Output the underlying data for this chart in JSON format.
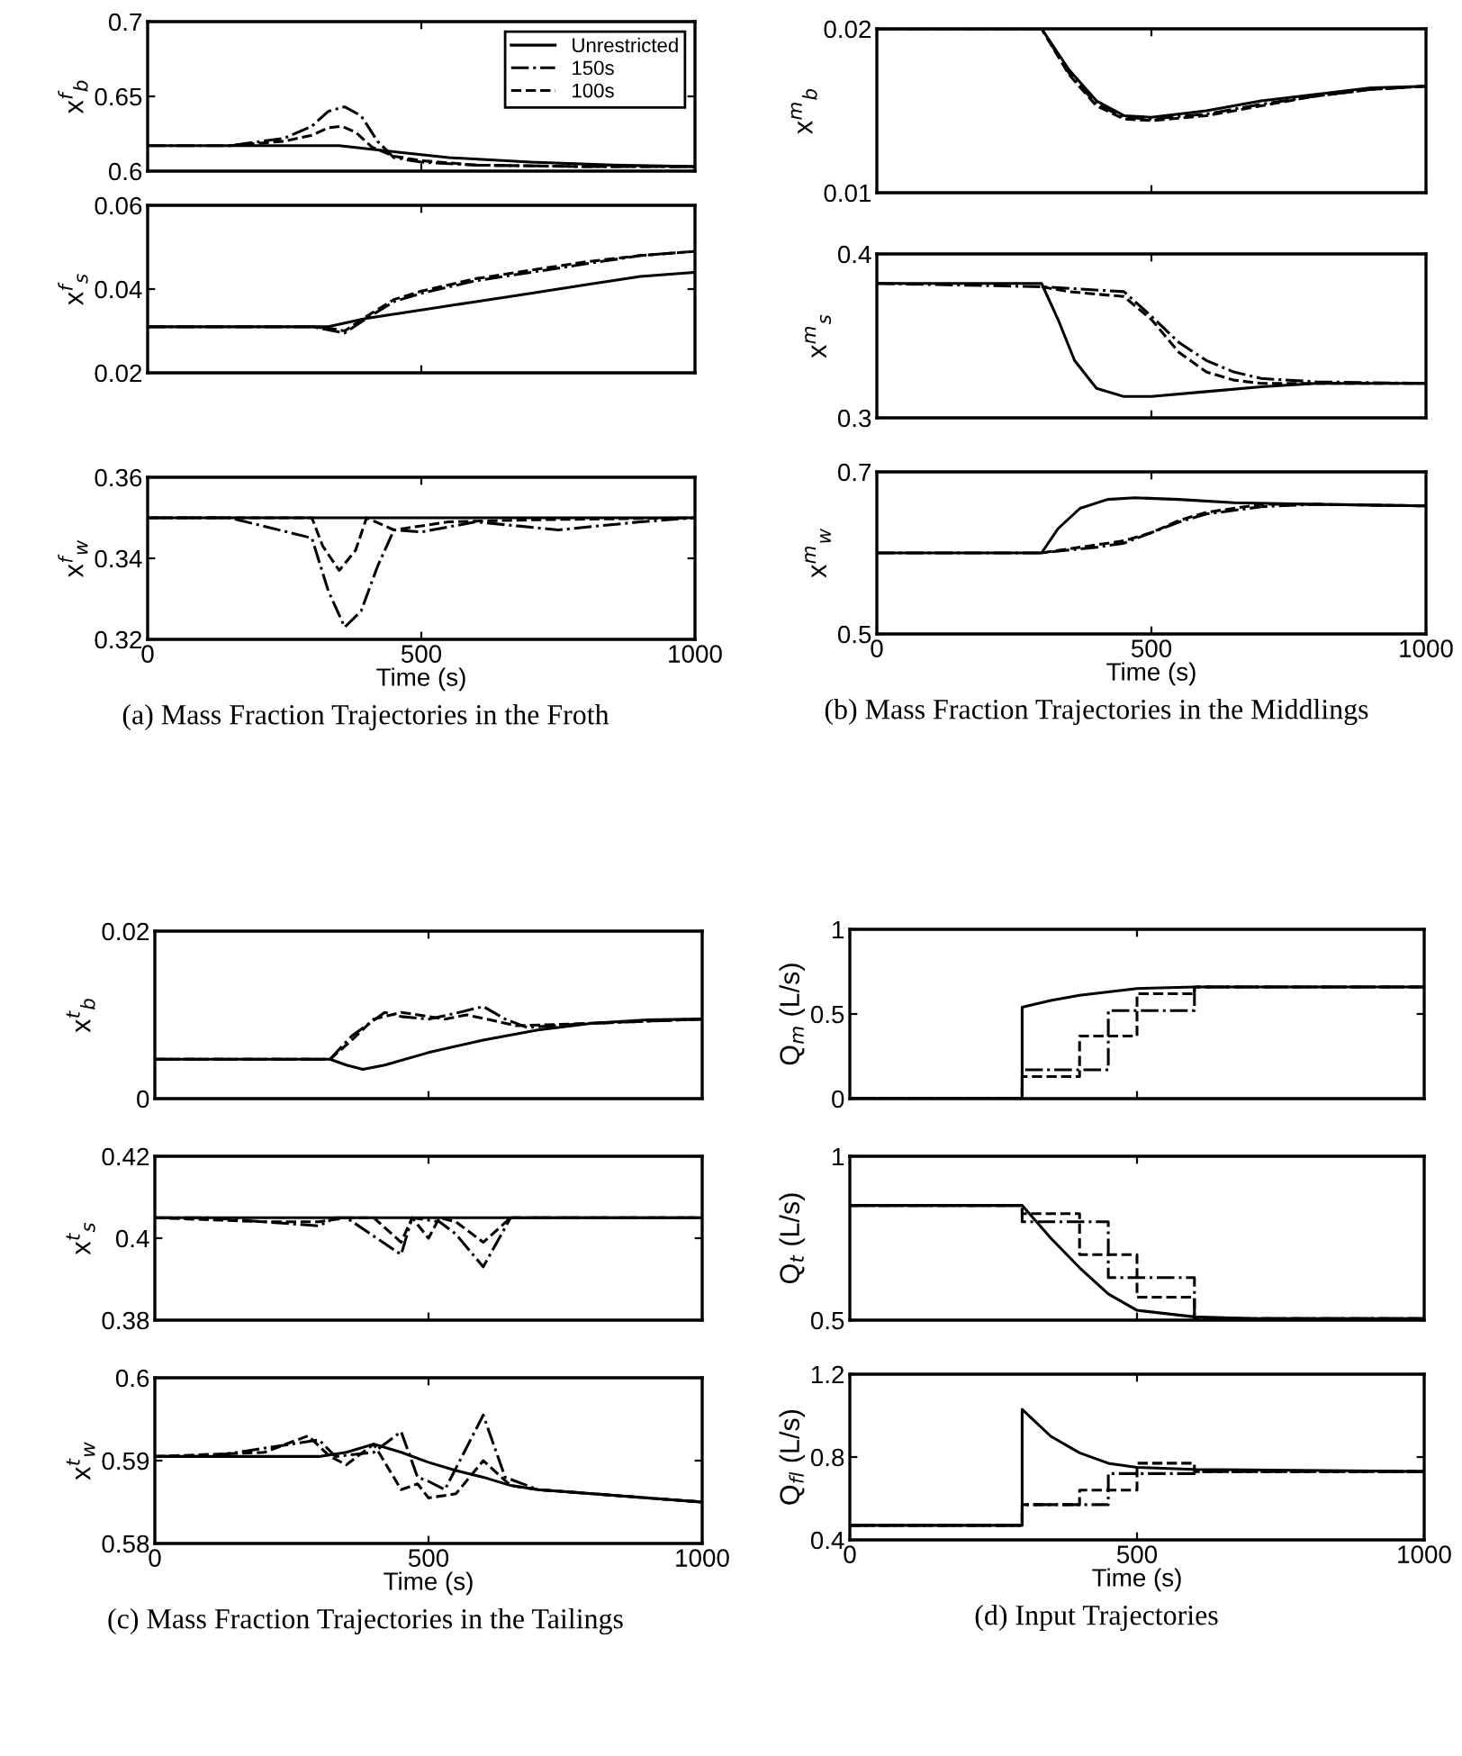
{
  "chart_data": [
    {
      "type": "line",
      "ylabel": "x$^{f}$$_{b}$",
      "xlim": [
        0,
        1000
      ],
      "xticks": [
        0,
        500,
        1000
      ],
      "ylim": [
        0.6,
        0.7
      ],
      "yticks": [
        0.6,
        0.65,
        0.7
      ],
      "tick_labels": "y",
      "legend": "top right",
      "series": [
        {
          "name": "Unrestricted",
          "color": "#000000",
          "line_style": "solid",
          "x": [
            0,
            350,
            450,
            550,
            700,
            850,
            1000
          ],
          "values": [
            0.617,
            0.617,
            0.613,
            0.609,
            0.606,
            0.604,
            0.603
          ]
        },
        {
          "name": "150s",
          "color": "#000000",
          "line_style": "dashdot",
          "x": [
            0,
            150,
            250,
            300,
            330,
            360,
            390,
            420,
            450,
            500,
            600,
            800,
            1000
          ],
          "values": [
            0.617,
            0.617,
            0.622,
            0.63,
            0.64,
            0.643,
            0.637,
            0.62,
            0.609,
            0.606,
            0.604,
            0.603,
            0.603
          ]
        },
        {
          "name": "100s",
          "color": "#000000",
          "line_style": "dashed",
          "x": [
            150,
            250,
            300,
            330,
            355,
            380,
            410,
            450,
            500,
            600,
            800,
            1000
          ],
          "values": [
            0.617,
            0.62,
            0.624,
            0.629,
            0.63,
            0.626,
            0.616,
            0.61,
            0.607,
            0.604,
            0.603,
            0.603
          ]
        }
      ]
    },
    {
      "type": "line",
      "ylabel": "x$^{f}$$_{s}$",
      "xlim": [
        0,
        1000
      ],
      "xticks": [
        0,
        500,
        1000
      ],
      "ylim": [
        0.02,
        0.06
      ],
      "yticks": [
        0.02,
        0.04,
        0.06
      ],
      "tick_labels": "y",
      "series": [
        {
          "color": "#000000",
          "line_style": "solid",
          "x": [
            0,
            330,
            400,
            500,
            600,
            700,
            800,
            900,
            1000
          ],
          "values": [
            0.031,
            0.031,
            0.033,
            0.035,
            0.037,
            0.039,
            0.041,
            0.043,
            0.044
          ]
        },
        {
          "color": "#000000",
          "line_style": "dashdot",
          "x": [
            0,
            300,
            340,
            360,
            400,
            450,
            500,
            600,
            700,
            800,
            900,
            1000
          ],
          "values": [
            0.031,
            0.031,
            0.03,
            0.0295,
            0.033,
            0.037,
            0.039,
            0.042,
            0.044,
            0.046,
            0.048,
            0.049
          ]
        },
        {
          "color": "#000000",
          "line_style": "dashed",
          "x": [
            300,
            340,
            360,
            400,
            450,
            500,
            600,
            700,
            800,
            900,
            1000
          ],
          "values": [
            0.031,
            0.0305,
            0.03,
            0.0335,
            0.0375,
            0.0395,
            0.0425,
            0.0445,
            0.0465,
            0.048,
            0.049
          ]
        }
      ]
    },
    {
      "type": "line",
      "ylabel": "x$^{f}$$_{w}$",
      "xlabel": "Time (s)",
      "xlim": [
        0,
        1000
      ],
      "xticks": [
        0,
        500,
        1000
      ],
      "ylim": [
        0.32,
        0.36
      ],
      "yticks": [
        0.32,
        0.34,
        0.36
      ],
      "annotations": [
        "(a) Mass Fraction Trajectories in the Froth"
      ],
      "series": [
        {
          "color": "#000000",
          "line_style": "solid",
          "x": [
            0,
            1000
          ],
          "values": [
            0.35,
            0.35
          ]
        },
        {
          "color": "#000000",
          "line_style": "dashdot",
          "x": [
            0,
            150,
            300,
            330,
            360,
            390,
            420,
            450,
            500,
            600,
            750,
            900,
            1000
          ],
          "values": [
            0.35,
            0.35,
            0.345,
            0.332,
            0.323,
            0.327,
            0.338,
            0.347,
            0.3465,
            0.349,
            0.347,
            0.349,
            0.35
          ]
        },
        {
          "color": "#000000",
          "line_style": "dashed",
          "x": [
            0,
            300,
            320,
            350,
            380,
            400,
            450,
            550,
            700,
            1000
          ],
          "values": [
            0.35,
            0.35,
            0.343,
            0.337,
            0.342,
            0.35,
            0.347,
            0.349,
            0.3495,
            0.35
          ]
        }
      ]
    },
    {
      "type": "line",
      "ylabel": "x$^{m}$$_{b}$",
      "xlim": [
        0,
        1000
      ],
      "xticks": [
        0,
        500,
        1000
      ],
      "ylim": [
        0.01,
        0.02
      ],
      "yticks": [
        0.01,
        0.02
      ],
      "tick_labels": "y",
      "series": [
        {
          "color": "#000000",
          "line_style": "solid",
          "x": [
            0,
            300,
            350,
            400,
            450,
            500,
            600,
            700,
            800,
            900,
            1000
          ],
          "values": [
            0.02,
            0.02,
            0.0175,
            0.0156,
            0.0147,
            0.0146,
            0.015,
            0.0156,
            0.016,
            0.0164,
            0.0165
          ]
        },
        {
          "color": "#000000",
          "line_style": "dashdot",
          "x": [
            0,
            300,
            350,
            400,
            450,
            500,
            600,
            700,
            800,
            900,
            1000
          ],
          "values": [
            0.02,
            0.02,
            0.0173,
            0.0154,
            0.0146,
            0.0145,
            0.0148,
            0.0154,
            0.0159,
            0.0163,
            0.0165
          ]
        },
        {
          "color": "#000000",
          "line_style": "dashed",
          "x": [
            0,
            300,
            350,
            400,
            450,
            500,
            600,
            700,
            800,
            900,
            1000
          ],
          "values": [
            0.02,
            0.02,
            0.0172,
            0.0153,
            0.0145,
            0.0144,
            0.0147,
            0.0153,
            0.0159,
            0.0163,
            0.0165
          ]
        }
      ]
    },
    {
      "type": "line",
      "ylabel": "x$^{m}$$_{s}$",
      "xlim": [
        0,
        1000
      ],
      "xticks": [
        0,
        500,
        1000
      ],
      "ylim": [
        0.3,
        0.4
      ],
      "yticks": [
        0.3,
        0.4
      ],
      "tick_labels": "y",
      "series": [
        {
          "color": "#000000",
          "line_style": "solid",
          "x": [
            0,
            300,
            330,
            360,
            400,
            450,
            500,
            600,
            700,
            800,
            1000
          ],
          "values": [
            0.382,
            0.382,
            0.36,
            0.335,
            0.318,
            0.313,
            0.313,
            0.316,
            0.319,
            0.321,
            0.321
          ]
        },
        {
          "color": "#000000",
          "line_style": "dashdot",
          "x": [
            0,
            300,
            450,
            500,
            550,
            600,
            650,
            700,
            800,
            1000
          ],
          "values": [
            0.382,
            0.38,
            0.377,
            0.362,
            0.346,
            0.335,
            0.328,
            0.324,
            0.322,
            0.321
          ]
        },
        {
          "color": "#000000",
          "line_style": "dashed",
          "x": [
            300,
            350,
            450,
            500,
            550,
            600,
            650,
            700,
            800,
            1000
          ],
          "values": [
            0.38,
            0.377,
            0.374,
            0.36,
            0.34,
            0.328,
            0.323,
            0.321,
            0.321,
            0.321
          ]
        }
      ]
    },
    {
      "type": "line",
      "ylabel": "x$^{m}$$_{w}$",
      "xlabel": "Time (s)",
      "xlim": [
        0,
        1000
      ],
      "xticks": [
        0,
        500,
        1000
      ],
      "ylim": [
        0.5,
        0.7
      ],
      "yticks": [
        0.5,
        0.7
      ],
      "annotations": [
        "(b) Mass Fraction Trajectories in the Middlings"
      ],
      "series": [
        {
          "color": "#000000",
          "line_style": "solid",
          "x": [
            0,
            300,
            330,
            370,
            420,
            470,
            550,
            650,
            800,
            1000
          ],
          "values": [
            0.6,
            0.6,
            0.63,
            0.655,
            0.666,
            0.668,
            0.666,
            0.662,
            0.66,
            0.658
          ]
        },
        {
          "color": "#000000",
          "line_style": "dashdot",
          "x": [
            0,
            300,
            400,
            450,
            500,
            550,
            600,
            700,
            800,
            1000
          ],
          "values": [
            0.6,
            0.6,
            0.607,
            0.612,
            0.625,
            0.638,
            0.648,
            0.657,
            0.66,
            0.658
          ]
        },
        {
          "color": "#000000",
          "line_style": "dashed",
          "x": [
            300,
            400,
            450,
            500,
            550,
            600,
            700,
            800,
            1000
          ],
          "values": [
            0.6,
            0.61,
            0.615,
            0.625,
            0.64,
            0.65,
            0.66,
            0.66,
            0.658
          ]
        }
      ]
    },
    {
      "type": "line",
      "ylabel": "x$^{t}$$_{b}$",
      "xlim": [
        0,
        1000
      ],
      "xticks": [
        0,
        500,
        1000
      ],
      "ylim": [
        0,
        0.02
      ],
      "yticks": [
        0,
        0.02
      ],
      "tick_labels": "y",
      "series": [
        {
          "color": "#000000",
          "line_style": "solid",
          "x": [
            0,
            320,
            350,
            380,
            420,
            500,
            600,
            700,
            800,
            900,
            1000
          ],
          "values": [
            0.0047,
            0.0047,
            0.004,
            0.0035,
            0.004,
            0.0055,
            0.007,
            0.0082,
            0.009,
            0.0094,
            0.0095
          ]
        },
        {
          "color": "#000000",
          "line_style": "dashdot",
          "x": [
            0,
            320,
            360,
            420,
            450,
            500,
            550,
            600,
            640,
            680,
            800,
            1000
          ],
          "values": [
            0.0047,
            0.0047,
            0.0075,
            0.0103,
            0.0098,
            0.0095,
            0.0102,
            0.011,
            0.0095,
            0.0085,
            0.009,
            0.0095
          ]
        },
        {
          "color": "#000000",
          "line_style": "dashed",
          "x": [
            0,
            320,
            360,
            400,
            450,
            500,
            530,
            570,
            620,
            660,
            800,
            1000
          ],
          "values": [
            0.0047,
            0.0047,
            0.007,
            0.0095,
            0.0103,
            0.0098,
            0.0095,
            0.01,
            0.0093,
            0.0087,
            0.009,
            0.0095
          ]
        }
      ]
    },
    {
      "type": "line",
      "ylabel": "x$^{t}$$_{s}$",
      "xlim": [
        0,
        1000
      ],
      "xticks": [
        0,
        500,
        1000
      ],
      "ylim": [
        0.38,
        0.42
      ],
      "yticks": [
        0.38,
        0.4,
        0.42
      ],
      "tick_labels": "y",
      "series": [
        {
          "color": "#000000",
          "line_style": "solid",
          "x": [
            0,
            1000
          ],
          "values": [
            0.405,
            0.405
          ]
        },
        {
          "color": "#000000",
          "line_style": "dashdot",
          "x": [
            0,
            100,
            200,
            300,
            330,
            350,
            450,
            470,
            520,
            550,
            600,
            650,
            1000
          ],
          "values": [
            0.405,
            0.405,
            0.404,
            0.403,
            0.405,
            0.405,
            0.396,
            0.405,
            0.404,
            0.401,
            0.393,
            0.405,
            0.405
          ]
        },
        {
          "color": "#000000",
          "line_style": "dashed",
          "x": [
            0,
            200,
            300,
            350,
            400,
            450,
            470,
            500,
            520,
            550,
            600,
            650,
            1000
          ],
          "values": [
            0.405,
            0.404,
            0.404,
            0.405,
            0.405,
            0.399,
            0.405,
            0.4,
            0.405,
            0.404,
            0.399,
            0.405,
            0.405
          ]
        }
      ]
    },
    {
      "type": "line",
      "ylabel": "x$^{t}$$_{w}$",
      "xlabel": "Time (s)",
      "xlim": [
        0,
        1000
      ],
      "xticks": [
        0,
        500,
        1000
      ],
      "ylim": [
        0.58,
        0.6
      ],
      "yticks": [
        0.58,
        0.59,
        0.6
      ],
      "annotations": [
        "(c) Mass Fraction Trajectories in the Tailings"
      ],
      "series": [
        {
          "color": "#000000",
          "line_style": "solid",
          "x": [
            0,
            300,
            350,
            400,
            450,
            500,
            550,
            600,
            650,
            700,
            800,
            900,
            1000
          ],
          "values": [
            0.5905,
            0.5905,
            0.591,
            0.592,
            0.591,
            0.5898,
            0.5888,
            0.588,
            0.587,
            0.5865,
            0.586,
            0.5855,
            0.585
          ]
        },
        {
          "color": "#000000",
          "line_style": "dashdot",
          "x": [
            0,
            100,
            250,
            300,
            330,
            400,
            450,
            480,
            500,
            530,
            600,
            640,
            700,
            800,
            1000
          ],
          "values": [
            0.5905,
            0.5905,
            0.592,
            0.5925,
            0.5905,
            0.591,
            0.5935,
            0.588,
            0.5875,
            0.5865,
            0.5955,
            0.588,
            0.5865,
            0.586,
            0.585
          ]
        },
        {
          "color": "#000000",
          "line_style": "dashed",
          "x": [
            0,
            200,
            280,
            320,
            350,
            400,
            450,
            480,
            500,
            550,
            600,
            650,
            700,
            1000
          ],
          "values": [
            0.5905,
            0.591,
            0.593,
            0.5905,
            0.5895,
            0.592,
            0.5865,
            0.5872,
            0.5855,
            0.586,
            0.59,
            0.587,
            0.5865,
            0.585
          ]
        }
      ]
    },
    {
      "type": "line",
      "ylabel": "Q$_{m}$ (L/s)",
      "xlim": [
        0,
        1000
      ],
      "xticks": [
        0,
        500,
        1000
      ],
      "ylim": [
        0,
        1
      ],
      "yticks": [
        0,
        0.5,
        1
      ],
      "tick_labels": "y",
      "series": [
        {
          "color": "#000000",
          "line_style": "solid",
          "x": [
            0,
            300,
            300,
            350,
            400,
            450,
            500,
            600,
            1000
          ],
          "values": [
            0,
            0,
            0.54,
            0.58,
            0.61,
            0.63,
            0.65,
            0.66,
            0.66
          ]
        },
        {
          "type": "step",
          "color": "#000000",
          "line_style": "dashdot",
          "x": [
            0,
            300,
            450,
            600,
            1000
          ],
          "values": [
            0,
            0.17,
            0.52,
            0.66,
            0.66
          ]
        },
        {
          "type": "step",
          "color": "#000000",
          "line_style": "dashed",
          "x": [
            0,
            300,
            400,
            500,
            600,
            1000
          ],
          "values": [
            0,
            0.13,
            0.37,
            0.62,
            0.66,
            0.66
          ]
        }
      ]
    },
    {
      "type": "line",
      "ylabel": "Q$_{t}$ (L/s)",
      "xlim": [
        0,
        1000
      ],
      "xticks": [
        0,
        500,
        1000
      ],
      "ylim": [
        0.5,
        1
      ],
      "yticks": [
        0.5,
        1
      ],
      "tick_labels": "y",
      "series": [
        {
          "color": "#000000",
          "line_style": "solid",
          "x": [
            0,
            300,
            350,
            400,
            450,
            500,
            600,
            700,
            1000
          ],
          "values": [
            0.85,
            0.85,
            0.75,
            0.66,
            0.58,
            0.53,
            0.51,
            0.505,
            0.505
          ]
        },
        {
          "type": "step",
          "color": "#000000",
          "line_style": "dashdot",
          "x": [
            0,
            300,
            450,
            600,
            1000
          ],
          "values": [
            0.85,
            0.8,
            0.63,
            0.505,
            0.505
          ]
        },
        {
          "type": "step",
          "color": "#000000",
          "line_style": "dashed",
          "x": [
            0,
            300,
            400,
            500,
            600,
            1000
          ],
          "values": [
            0.85,
            0.825,
            0.7,
            0.57,
            0.505,
            0.505
          ]
        }
      ]
    },
    {
      "type": "line",
      "ylabel": "Q$_{fl}$ (L/s)",
      "xlabel": "Time (s)",
      "xlim": [
        0,
        1000
      ],
      "xticks": [
        0,
        500,
        1000
      ],
      "ylim": [
        0.4,
        1.2
      ],
      "yticks": [
        0.4,
        0.8,
        1.2
      ],
      "annotations": [
        "(d) Input Trajectories"
      ],
      "series": [
        {
          "color": "#000000",
          "line_style": "solid",
          "x": [
            0,
            300,
            300,
            350,
            400,
            450,
            500,
            600,
            1000
          ],
          "values": [
            0.47,
            0.47,
            1.03,
            0.9,
            0.82,
            0.77,
            0.75,
            0.74,
            0.73
          ]
        },
        {
          "type": "step",
          "color": "#000000",
          "line_style": "dashdot",
          "x": [
            0,
            300,
            450,
            600,
            1000
          ],
          "values": [
            0.47,
            0.57,
            0.72,
            0.73,
            0.73
          ]
        },
        {
          "type": "step",
          "color": "#000000",
          "line_style": "dashed",
          "x": [
            0,
            300,
            400,
            500,
            600,
            1000
          ],
          "values": [
            0.47,
            0.57,
            0.64,
            0.77,
            0.73,
            0.73
          ]
        }
      ]
    }
  ]
}
